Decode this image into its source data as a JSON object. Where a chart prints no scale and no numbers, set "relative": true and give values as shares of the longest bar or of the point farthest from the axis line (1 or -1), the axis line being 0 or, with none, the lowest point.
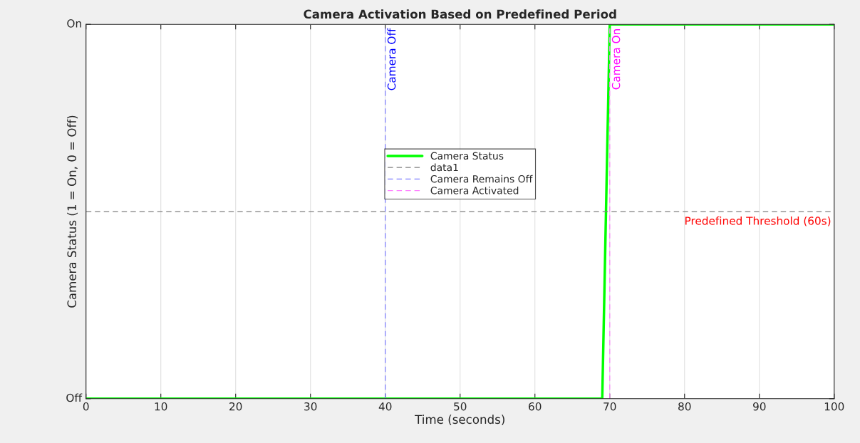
{
  "chart_data": {
    "type": "line",
    "title": "Camera Activation Based on Predefined Period",
    "xlabel": "Time (seconds)",
    "ylabel": "Camera Status (1 = On, 0 = Off)",
    "xlim": [
      0,
      100
    ],
    "xticks": [
      0,
      10,
      20,
      30,
      40,
      50,
      60,
      70,
      80,
      90,
      100
    ],
    "relative": true,
    "grid": true,
    "legend": "center",
    "series": [
      {
        "name": "Camera Status",
        "color": "#00ff00",
        "x": [
          0,
          69,
          70,
          100
        ],
        "values": [
          0,
          0,
          1,
          1
        ],
        "line_style": "solid"
      },
      {
        "name": "data1",
        "color": "#808080",
        "x": [
          0,
          100
        ],
        "values": [
          0.5,
          0.5
        ],
        "line_style": "dashed"
      },
      {
        "name": "Camera Remains Off",
        "color": "#8080ff",
        "x": [
          40,
          40
        ],
        "values": [
          0,
          1
        ],
        "line_style": "dashed"
      },
      {
        "name": "Camera Activated",
        "color": "#ff80ff",
        "x": [
          70,
          70
        ],
        "values": [
          0,
          1
        ],
        "line_style": "dashed"
      }
    ],
    "annotations": [
      "Off",
      "On",
      {
        "text": "Camera Off",
        "x": 40,
        "y": 1
      },
      {
        "text": "Camera On",
        "x": 70,
        "y": 1
      },
      {
        "text": "Predefined Threshold (60s)",
        "x": 100,
        "y": 0.5
      }
    ]
  }
}
